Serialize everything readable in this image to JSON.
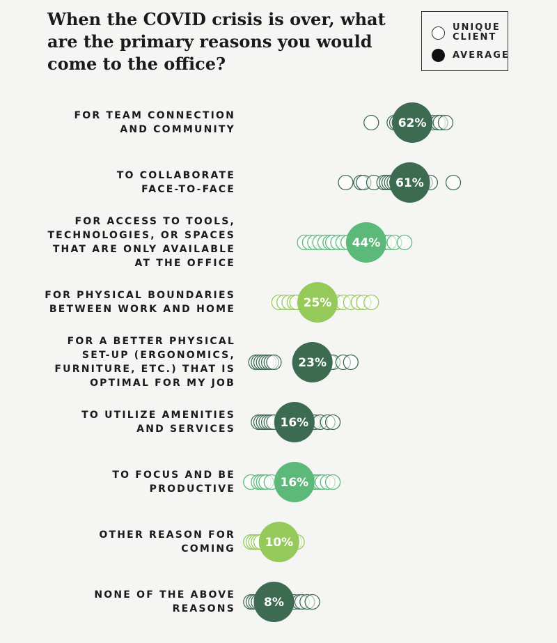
{
  "chart_data": {
    "type": "scatter",
    "title": "When the COVID crisis is over, what are the primary reasons you would come to the office?",
    "legend": {
      "placement": "top-right",
      "entries": [
        {
          "label": "UNIQUE\nCLIENT",
          "style": "hollow"
        },
        {
          "label": "AVERAGE",
          "style": "filled"
        }
      ]
    },
    "xlim": [
      0,
      100
    ],
    "categories": [
      "FOR TEAM CONNECTION\nAND COMMUNITY",
      "TO COLLABORATE\nFACE-TO-FACE",
      "FOR ACCESS TO TOOLS,\nTECHNOLOGIES, OR SPACES\nTHAT ARE ONLY AVAILABLE\nAT THE OFFICE",
      "FOR PHYSICAL BOUNDARIES\nBETWEEN WORK AND HOME",
      "FOR A BETTER PHYSICAL\nSET-UP (ERGONOMICS,\nFURNITURE, ETC.) THAT IS\nOPTIMAL FOR MY JOB",
      "TO UTILIZE AMENITIES\nAND SERVICES",
      "TO FOCUS AND BE\nPRODUCTIVE",
      "OTHER REASON FOR\nCOMING",
      "NONE OF THE ABOVE\nREASONS"
    ],
    "average": [
      62,
      61,
      44,
      25,
      23,
      16,
      16,
      10,
      8
    ],
    "average_labels": [
      "62%",
      "61%",
      "44%",
      "25%",
      "23%",
      "16%",
      "16%",
      "10%",
      "8%"
    ],
    "colors": [
      "#3d6b52",
      "#3d6b52",
      "#5cb97a",
      "#95c95a",
      "#3d6b52",
      "#3d6b52",
      "#5cb97a",
      "#95c95a",
      "#3d6b52"
    ],
    "unique_clients": [
      [
        46,
        55,
        56,
        57,
        58,
        59,
        60,
        66,
        67,
        68,
        70,
        72,
        73,
        75
      ],
      [
        36,
        42,
        43,
        47,
        51,
        52,
        53,
        54,
        55,
        56,
        62,
        63,
        64,
        66,
        67,
        69,
        78
      ],
      [
        20,
        22,
        24,
        26,
        28,
        30,
        31,
        33,
        35,
        37,
        47,
        48,
        49,
        51,
        53,
        55,
        59
      ],
      [
        10,
        12,
        14,
        16,
        17,
        29,
        31,
        33,
        35,
        38,
        41,
        43,
        46
      ],
      [
        1,
        2,
        3,
        4,
        5,
        6,
        7,
        8,
        30,
        31,
        35,
        38
      ],
      [
        2,
        3,
        4,
        5,
        6,
        7,
        8,
        19,
        20,
        21,
        22,
        23,
        24,
        26,
        29,
        31
      ],
      [
        -1,
        2,
        3,
        4,
        5,
        7,
        18,
        19,
        20,
        21,
        22,
        23,
        24,
        25,
        26,
        27,
        29,
        31
      ],
      [
        -1,
        0,
        1,
        2,
        3,
        14,
        15,
        16,
        17
      ],
      [
        -1,
        0,
        1,
        2,
        8,
        9,
        10,
        11,
        12,
        13,
        14,
        16,
        18,
        19,
        21,
        23
      ]
    ]
  }
}
